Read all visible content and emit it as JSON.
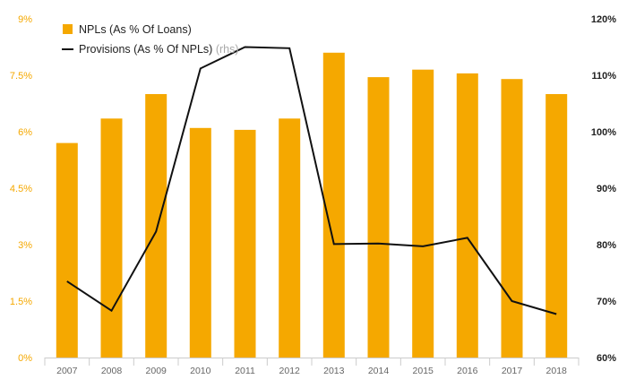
{
  "chart_data": {
    "type": "bar",
    "categories": [
      "2007",
      "2008",
      "2009",
      "2010",
      "2011",
      "2012",
      "2013",
      "2014",
      "2015",
      "2016",
      "2017",
      "2018"
    ],
    "series": [
      {
        "name": "NPLs (As % Of Loans)",
        "type": "bar",
        "axis": "left",
        "color": "#F5A800",
        "values": [
          5.7,
          6.35,
          7.0,
          6.1,
          6.05,
          6.35,
          8.1,
          7.45,
          7.65,
          7.55,
          7.4,
          7.0
        ]
      },
      {
        "name": "Provisions (As % Of NPLs)",
        "name_suffix": "(rhs)",
        "type": "line",
        "axis": "right",
        "color": "#111111",
        "values": [
          73.5,
          68.3,
          82.3,
          111.2,
          115.0,
          114.8,
          80.1,
          80.2,
          79.7,
          81.2,
          70.0,
          67.7
        ]
      }
    ],
    "y_left": {
      "ylim": [
        0,
        9
      ],
      "ticks": [
        "0%",
        "1.5%",
        "3%",
        "4.5%",
        "6%",
        "7.5%",
        "9%"
      ]
    },
    "y_right": {
      "ylim": [
        60,
        120
      ],
      "ticks": [
        "60%",
        "70%",
        "80%",
        "90%",
        "100%",
        "110%",
        "120%"
      ]
    },
    "grid": false,
    "legend_position": "top-left"
  }
}
